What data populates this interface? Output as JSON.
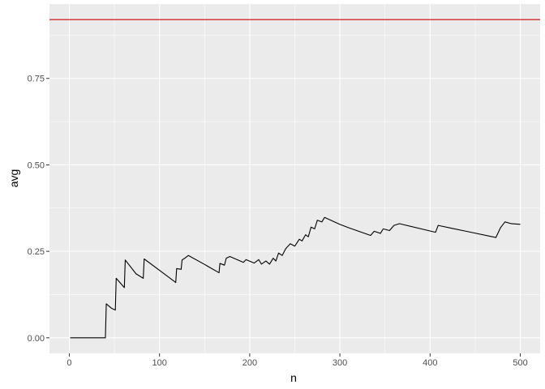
{
  "chart_data": {
    "type": "line",
    "xlabel": "n",
    "ylabel": "avg",
    "xlim": [
      -22,
      522
    ],
    "ylim": [
      -0.045,
      0.965
    ],
    "x_ticks": [
      0,
      100,
      200,
      300,
      400,
      500
    ],
    "x_tick_labels": [
      "0",
      "100",
      "200",
      "300",
      "400",
      "500"
    ],
    "y_ticks": [
      0.0,
      0.25,
      0.5,
      0.75
    ],
    "y_tick_labels": [
      "0.00",
      "0.25",
      "0.50",
      "0.75"
    ],
    "grid": true,
    "reference_line": {
      "y": 0.92,
      "color": "#cc0000"
    },
    "series": [
      {
        "color": "#000000",
        "points": [
          [
            1,
            0.0
          ],
          [
            40,
            0.0
          ],
          [
            41,
            0.098
          ],
          [
            47,
            0.085
          ],
          [
            51,
            0.08
          ],
          [
            52,
            0.172
          ],
          [
            61,
            0.145
          ],
          [
            62,
            0.225
          ],
          [
            74,
            0.185
          ],
          [
            82,
            0.172
          ],
          [
            83,
            0.228
          ],
          [
            100,
            0.195
          ],
          [
            118,
            0.16
          ],
          [
            119,
            0.2
          ],
          [
            124,
            0.198
          ],
          [
            125,
            0.225
          ],
          [
            128,
            0.23
          ],
          [
            132,
            0.238
          ],
          [
            150,
            0.212
          ],
          [
            166,
            0.188
          ],
          [
            167,
            0.215
          ],
          [
            172,
            0.21
          ],
          [
            174,
            0.23
          ],
          [
            178,
            0.235
          ],
          [
            193,
            0.218
          ],
          [
            196,
            0.226
          ],
          [
            205,
            0.216
          ],
          [
            210,
            0.226
          ],
          [
            213,
            0.213
          ],
          [
            218,
            0.222
          ],
          [
            222,
            0.213
          ],
          [
            226,
            0.23
          ],
          [
            229,
            0.222
          ],
          [
            232,
            0.245
          ],
          [
            236,
            0.238
          ],
          [
            240,
            0.258
          ],
          [
            245,
            0.272
          ],
          [
            250,
            0.265
          ],
          [
            255,
            0.285
          ],
          [
            258,
            0.28
          ],
          [
            262,
            0.298
          ],
          [
            265,
            0.292
          ],
          [
            268,
            0.32
          ],
          [
            272,
            0.315
          ],
          [
            275,
            0.34
          ],
          [
            280,
            0.335
          ],
          [
            283,
            0.348
          ],
          [
            300,
            0.328
          ],
          [
            310,
            0.318
          ],
          [
            334,
            0.296
          ],
          [
            338,
            0.308
          ],
          [
            345,
            0.302
          ],
          [
            348,
            0.315
          ],
          [
            355,
            0.31
          ],
          [
            360,
            0.325
          ],
          [
            366,
            0.33
          ],
          [
            406,
            0.305
          ],
          [
            409,
            0.325
          ],
          [
            425,
            0.316
          ],
          [
            440,
            0.308
          ],
          [
            473,
            0.29
          ],
          [
            478,
            0.318
          ],
          [
            483,
            0.335
          ],
          [
            490,
            0.33
          ],
          [
            500,
            0.328
          ]
        ]
      }
    ]
  }
}
